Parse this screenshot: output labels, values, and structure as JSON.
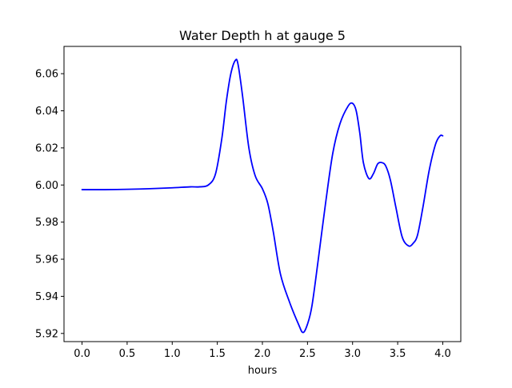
{
  "chart_data": {
    "type": "line",
    "title": "Water Depth h at gauge 5",
    "xlabel": "hours",
    "ylabel": "",
    "xlim": [
      -0.2,
      4.2
    ],
    "ylim": [
      5.9156,
      6.0747
    ],
    "xticks": [
      "0.0",
      "0.5",
      "1.0",
      "1.5",
      "2.0",
      "2.5",
      "3.0",
      "3.5",
      "4.0"
    ],
    "yticks": [
      "5.92",
      "5.94",
      "5.96",
      "5.98",
      "6.00",
      "6.02",
      "6.04",
      "6.06"
    ],
    "grid": false,
    "legend": "none",
    "series": [
      {
        "color": "#0000ff",
        "x": [
          0.0,
          0.25,
          0.5,
          0.75,
          1.0,
          1.2,
          1.3,
          1.4,
          1.48,
          1.55,
          1.6,
          1.65,
          1.7,
          1.73,
          1.78,
          1.85,
          1.92,
          2.0,
          2.06,
          2.12,
          2.2,
          2.3,
          2.4,
          2.45,
          2.5,
          2.55,
          2.62,
          2.7,
          2.78,
          2.86,
          2.95,
          3.0,
          3.04,
          3.08,
          3.12,
          3.18,
          3.23,
          3.28,
          3.33,
          3.37,
          3.42,
          3.48,
          3.55,
          3.62,
          3.67,
          3.72,
          3.78,
          3.85,
          3.92,
          3.97,
          4.0
        ],
        "y": [
          5.9975,
          5.9975,
          5.9977,
          5.998,
          5.9985,
          5.999,
          5.999,
          6.0,
          6.006,
          6.025,
          6.045,
          6.06,
          6.0672,
          6.065,
          6.048,
          6.02,
          6.005,
          5.998,
          5.99,
          5.975,
          5.952,
          5.937,
          5.925,
          5.9205,
          5.925,
          5.935,
          5.96,
          5.99,
          6.017,
          6.033,
          6.0425,
          6.044,
          6.04,
          6.028,
          6.012,
          6.0035,
          6.006,
          6.0115,
          6.012,
          6.01,
          6.0025,
          5.988,
          5.972,
          5.9672,
          5.9685,
          5.973,
          5.988,
          6.008,
          6.022,
          6.0265,
          6.0265
        ]
      }
    ]
  }
}
